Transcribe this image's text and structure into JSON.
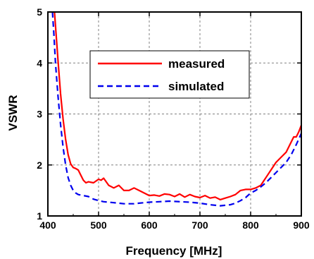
{
  "chart_data": {
    "type": "line",
    "title": "",
    "xlabel": "Frequency [MHz]",
    "ylabel": "VSWR",
    "xlim": [
      400,
      900
    ],
    "ylim": [
      1,
      5
    ],
    "xticks": [
      400,
      500,
      600,
      700,
      800,
      900
    ],
    "yticks": [
      1,
      2,
      3,
      4,
      5
    ],
    "grid": true,
    "legend": "upper-center",
    "series": [
      {
        "name": "measured",
        "color": "#ff0000",
        "style": "solid",
        "x": [
          413,
          416,
          420,
          425,
          430,
          435,
          440,
          445,
          450,
          455,
          460,
          465,
          470,
          475,
          480,
          490,
          500,
          505,
          510,
          520,
          530,
          540,
          550,
          560,
          570,
          580,
          590,
          600,
          610,
          620,
          630,
          640,
          650,
          660,
          670,
          680,
          690,
          700,
          710,
          720,
          730,
          740,
          750,
          760,
          770,
          780,
          790,
          800,
          810,
          820,
          830,
          840,
          850,
          860,
          870,
          880,
          885,
          890,
          895,
          900
        ],
        "y": [
          5.0,
          4.6,
          4.05,
          3.4,
          2.9,
          2.5,
          2.2,
          2.02,
          1.95,
          1.93,
          1.9,
          1.8,
          1.7,
          1.65,
          1.67,
          1.65,
          1.72,
          1.7,
          1.74,
          1.6,
          1.55,
          1.6,
          1.5,
          1.5,
          1.55,
          1.5,
          1.45,
          1.4,
          1.41,
          1.39,
          1.43,
          1.42,
          1.38,
          1.43,
          1.37,
          1.42,
          1.38,
          1.36,
          1.4,
          1.35,
          1.37,
          1.32,
          1.35,
          1.38,
          1.42,
          1.5,
          1.52,
          1.52,
          1.55,
          1.6,
          1.75,
          1.9,
          2.05,
          2.15,
          2.25,
          2.45,
          2.55,
          2.55,
          2.65,
          2.78
        ]
      },
      {
        "name": "simulated",
        "color": "#0000ee",
        "style": "dashed",
        "x": [
          409,
          412,
          415,
          420,
          425,
          430,
          435,
          440,
          445,
          450,
          455,
          460,
          470,
          480,
          490,
          500,
          510,
          520,
          530,
          540,
          550,
          560,
          570,
          580,
          590,
          600,
          620,
          640,
          660,
          680,
          700,
          720,
          740,
          760,
          770,
          780,
          790,
          800,
          810,
          820,
          830,
          840,
          850,
          860,
          870,
          880,
          890,
          900
        ],
        "y": [
          5.0,
          4.55,
          4.0,
          3.35,
          2.8,
          2.35,
          2.0,
          1.75,
          1.6,
          1.5,
          1.45,
          1.42,
          1.4,
          1.38,
          1.33,
          1.3,
          1.28,
          1.27,
          1.26,
          1.25,
          1.24,
          1.24,
          1.24,
          1.25,
          1.26,
          1.27,
          1.28,
          1.29,
          1.28,
          1.27,
          1.25,
          1.22,
          1.2,
          1.22,
          1.25,
          1.3,
          1.36,
          1.45,
          1.5,
          1.57,
          1.65,
          1.75,
          1.85,
          1.95,
          2.05,
          2.2,
          2.4,
          2.62
        ]
      }
    ]
  }
}
